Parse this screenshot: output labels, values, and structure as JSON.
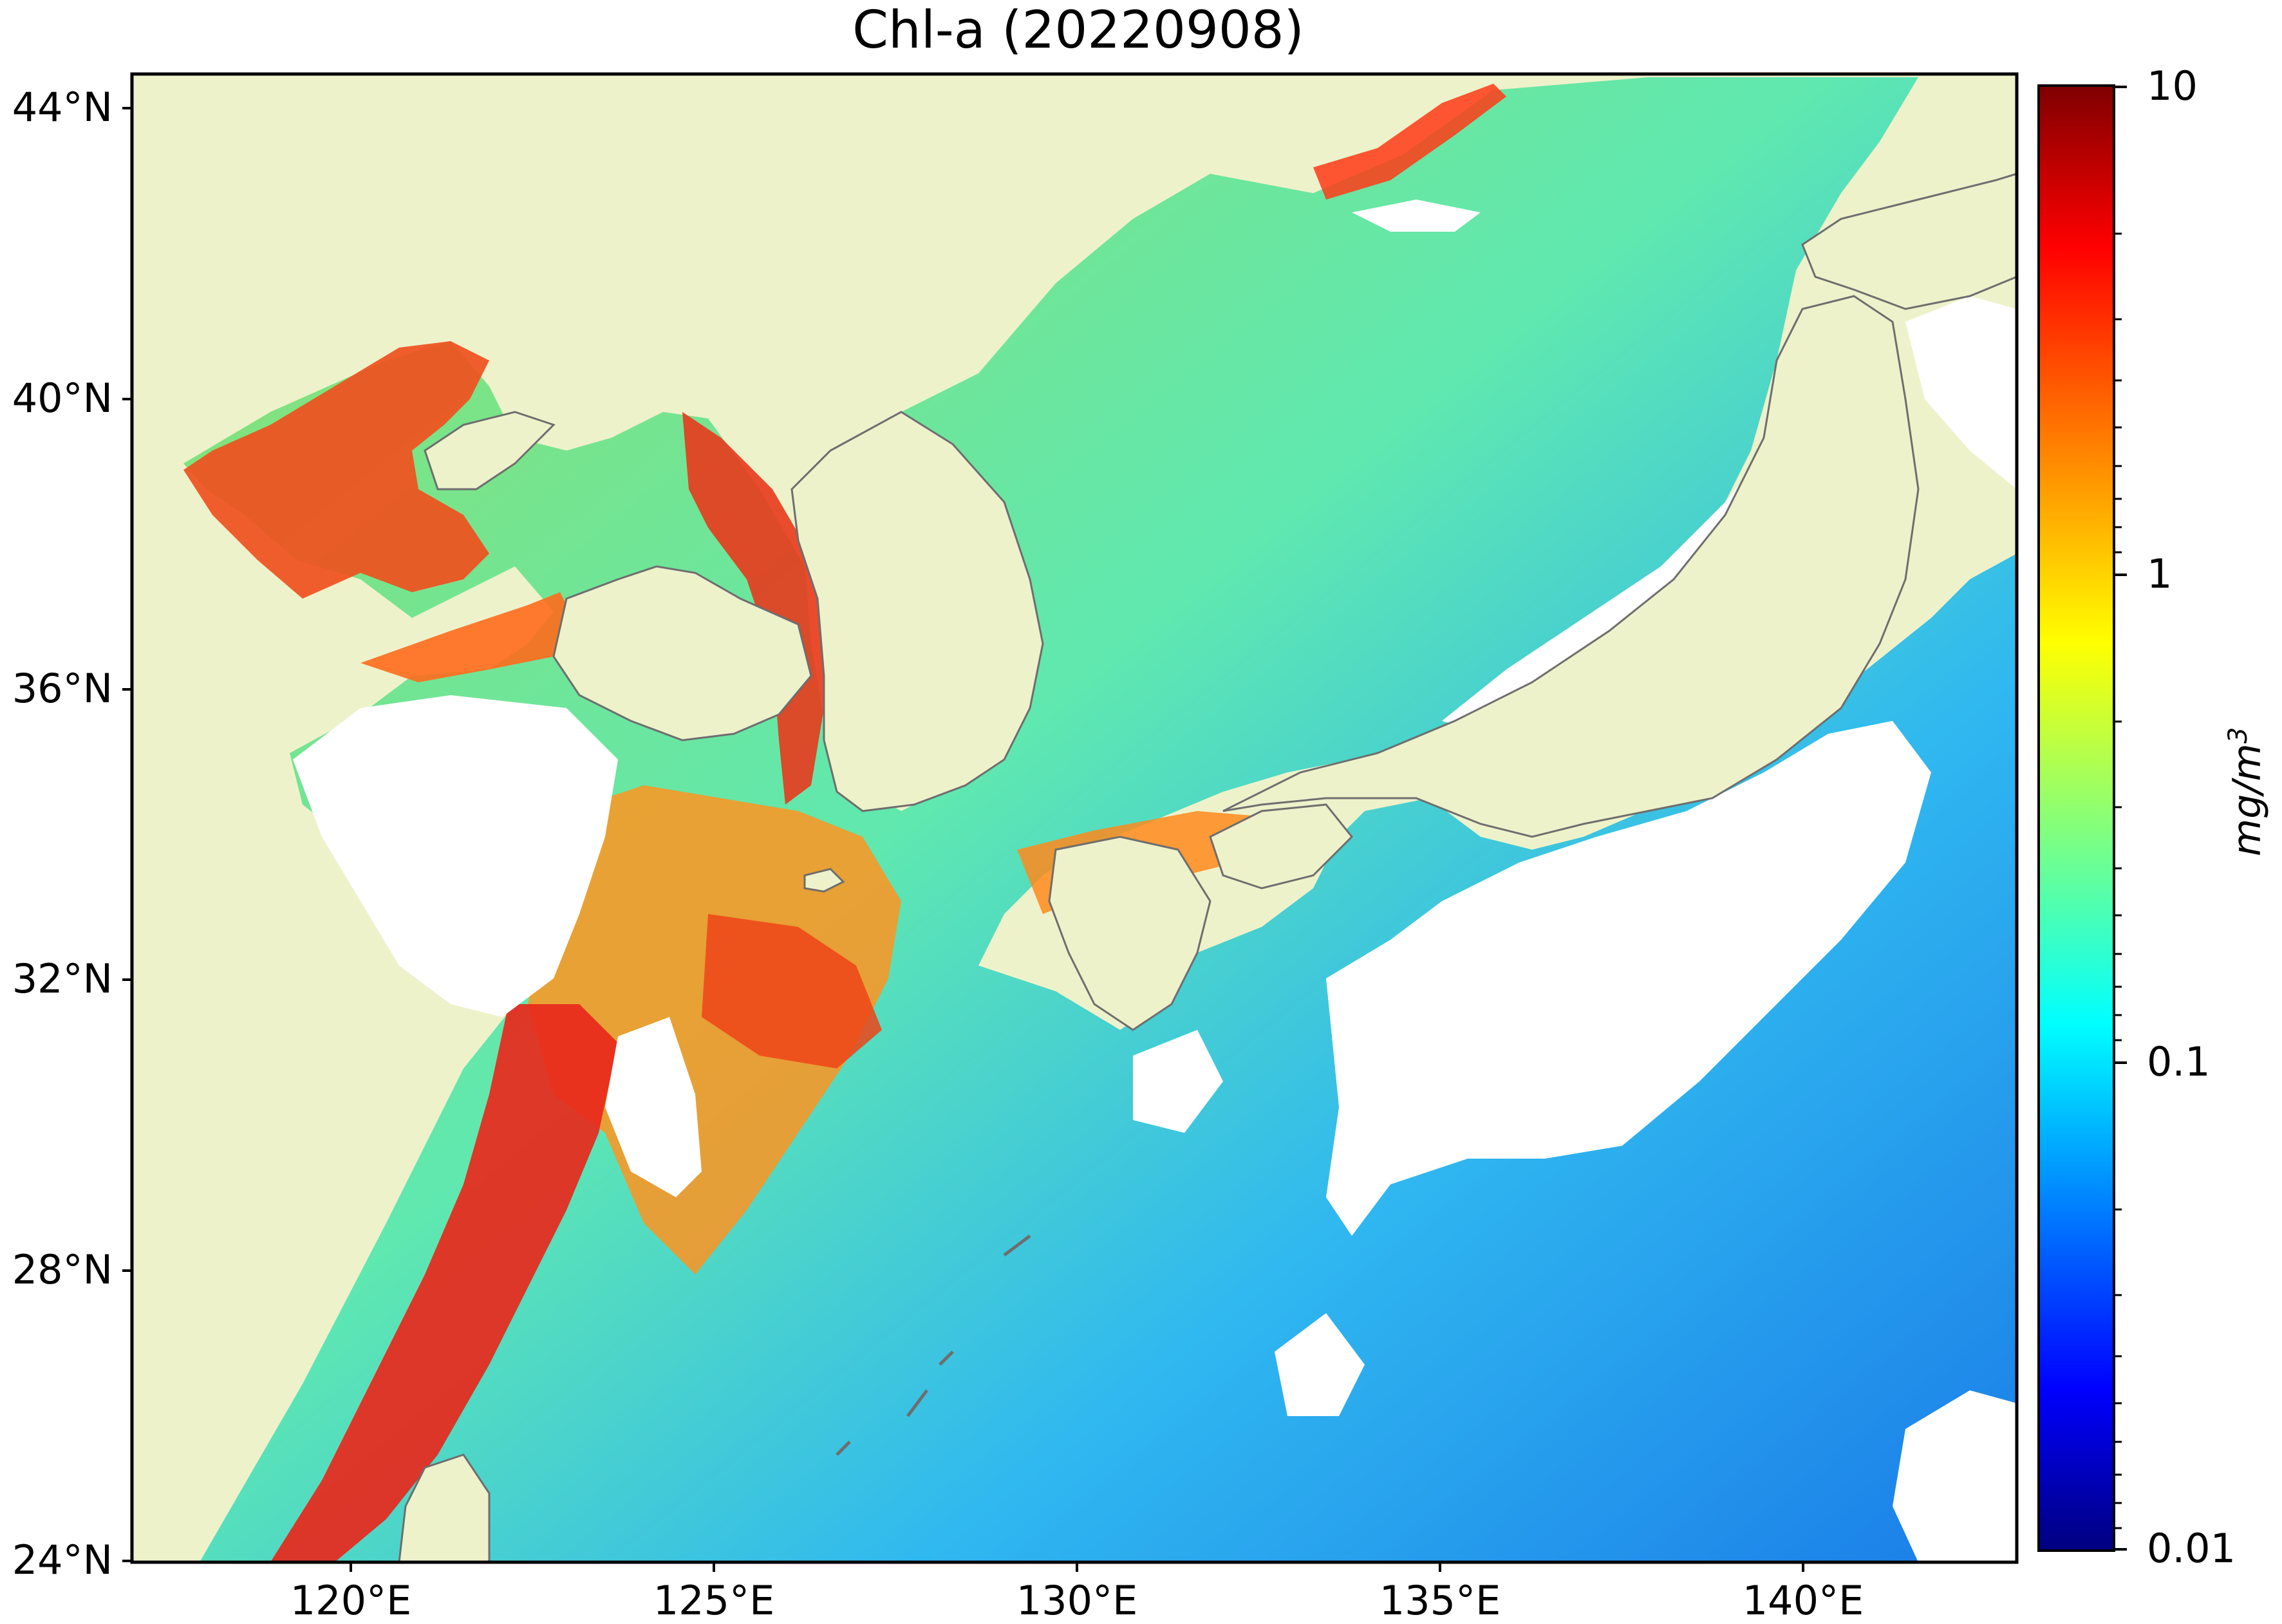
{
  "title": "Chl-a (20220908)",
  "axes": {
    "y_ticks": [
      "44°N",
      "40°N",
      "36°N",
      "32°N",
      "28°N",
      "24°N"
    ],
    "x_ticks": [
      "120°E",
      "125°E",
      "130°E",
      "135°E",
      "140°E"
    ]
  },
  "colorbar": {
    "ticks": [
      "10",
      "1",
      "0.1",
      "0.01"
    ],
    "unit_base": "mg/m",
    "unit_exp": "3",
    "scale": "log",
    "range": [
      0.01,
      10
    ],
    "colormap": "jet"
  },
  "colors": {
    "land": "#eef2cb",
    "coast": "#6e6e6e",
    "cloud": "#ffffff"
  },
  "chart_data": {
    "type": "heatmap",
    "title": "Chl-a (20220908)",
    "xlabel": "",
    "ylabel": "",
    "xlim": [
      116.5,
      143
    ],
    "ylim": [
      24,
      44.5
    ],
    "colorbar_unit": "mg/m3",
    "colorbar_scale": "log",
    "colorbar_range": [
      0.01,
      10
    ]
  }
}
